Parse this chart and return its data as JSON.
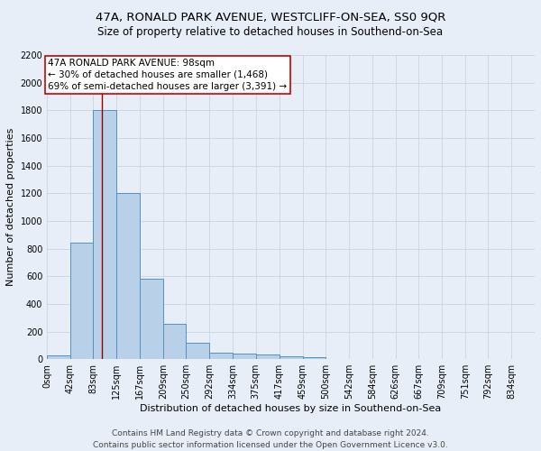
{
  "title": "47A, RONALD PARK AVENUE, WESTCLIFF-ON-SEA, SS0 9QR",
  "subtitle": "Size of property relative to detached houses in Southend-on-Sea",
  "xlabel": "Distribution of detached houses by size in Southend-on-Sea",
  "ylabel": "Number of detached properties",
  "bin_labels": [
    "0sqm",
    "42sqm",
    "83sqm",
    "125sqm",
    "167sqm",
    "209sqm",
    "250sqm",
    "292sqm",
    "334sqm",
    "375sqm",
    "417sqm",
    "459sqm",
    "500sqm",
    "542sqm",
    "584sqm",
    "626sqm",
    "667sqm",
    "709sqm",
    "751sqm",
    "792sqm",
    "834sqm"
  ],
  "bar_heights": [
    25,
    840,
    1800,
    1200,
    580,
    255,
    120,
    48,
    42,
    32,
    20,
    13,
    0,
    0,
    0,
    0,
    0,
    0,
    0,
    0
  ],
  "bar_color": "#b8d0e8",
  "bar_edge_color": "#5590c0",
  "bin_edges": [
    0,
    42,
    83,
    125,
    167,
    209,
    250,
    292,
    334,
    375,
    417,
    459,
    500,
    542,
    584,
    626,
    667,
    709,
    751,
    792,
    834
  ],
  "property_size": 98,
  "annotation_text_line1": "47A RONALD PARK AVENUE: 98sqm",
  "annotation_text_line2": "← 30% of detached houses are smaller (1,468)",
  "annotation_text_line3": "69% of semi-detached houses are larger (3,391) →",
  "red_line_color": "#990000",
  "annotation_box_color": "#ffffff",
  "annotation_box_edge": "#cc0000",
  "ylim": [
    0,
    2200
  ],
  "yticks": [
    0,
    200,
    400,
    600,
    800,
    1000,
    1200,
    1400,
    1600,
    1800,
    2000,
    2200
  ],
  "bg_color": "#e8eef8",
  "footer_line1": "Contains HM Land Registry data © Crown copyright and database right 2024.",
  "footer_line2": "Contains public sector information licensed under the Open Government Licence v3.0.",
  "title_fontsize": 9.5,
  "subtitle_fontsize": 8.5,
  "axis_label_fontsize": 8,
  "tick_fontsize": 7,
  "annotation_fontsize": 7.5,
  "footer_fontsize": 6.5
}
